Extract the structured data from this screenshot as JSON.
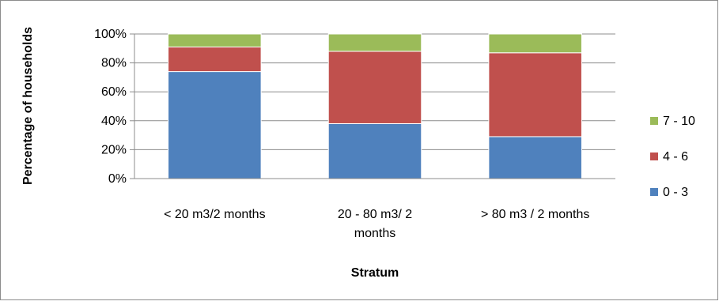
{
  "chart_data": {
    "type": "bar",
    "stacked": true,
    "categories": [
      "< 20 m3/2 months",
      "20 - 80 m3/ 2 months",
      "> 80 m3 / 2 months"
    ],
    "category_label_lines": [
      [
        "< 20 m3/2 months"
      ],
      [
        "20 - 80 m3/ 2",
        "months"
      ],
      [
        "> 80 m3 / 2 months"
      ]
    ],
    "series": [
      {
        "name": "0 - 3",
        "color": "#4F81BD",
        "values": [
          74,
          38,
          29
        ]
      },
      {
        "name": "4 - 6",
        "color": "#C0504D",
        "values": [
          17,
          50,
          58
        ]
      },
      {
        "name": "7 - 10",
        "color": "#9BBB59",
        "values": [
          9,
          12,
          13
        ]
      }
    ],
    "xlabel": "Stratum",
    "ylabel": "Percentage of households",
    "ylim": [
      0,
      100
    ],
    "yticks": [
      "0%",
      "20%",
      "40%",
      "60%",
      "80%",
      "100%"
    ],
    "grid": true,
    "legend_position": "right"
  }
}
